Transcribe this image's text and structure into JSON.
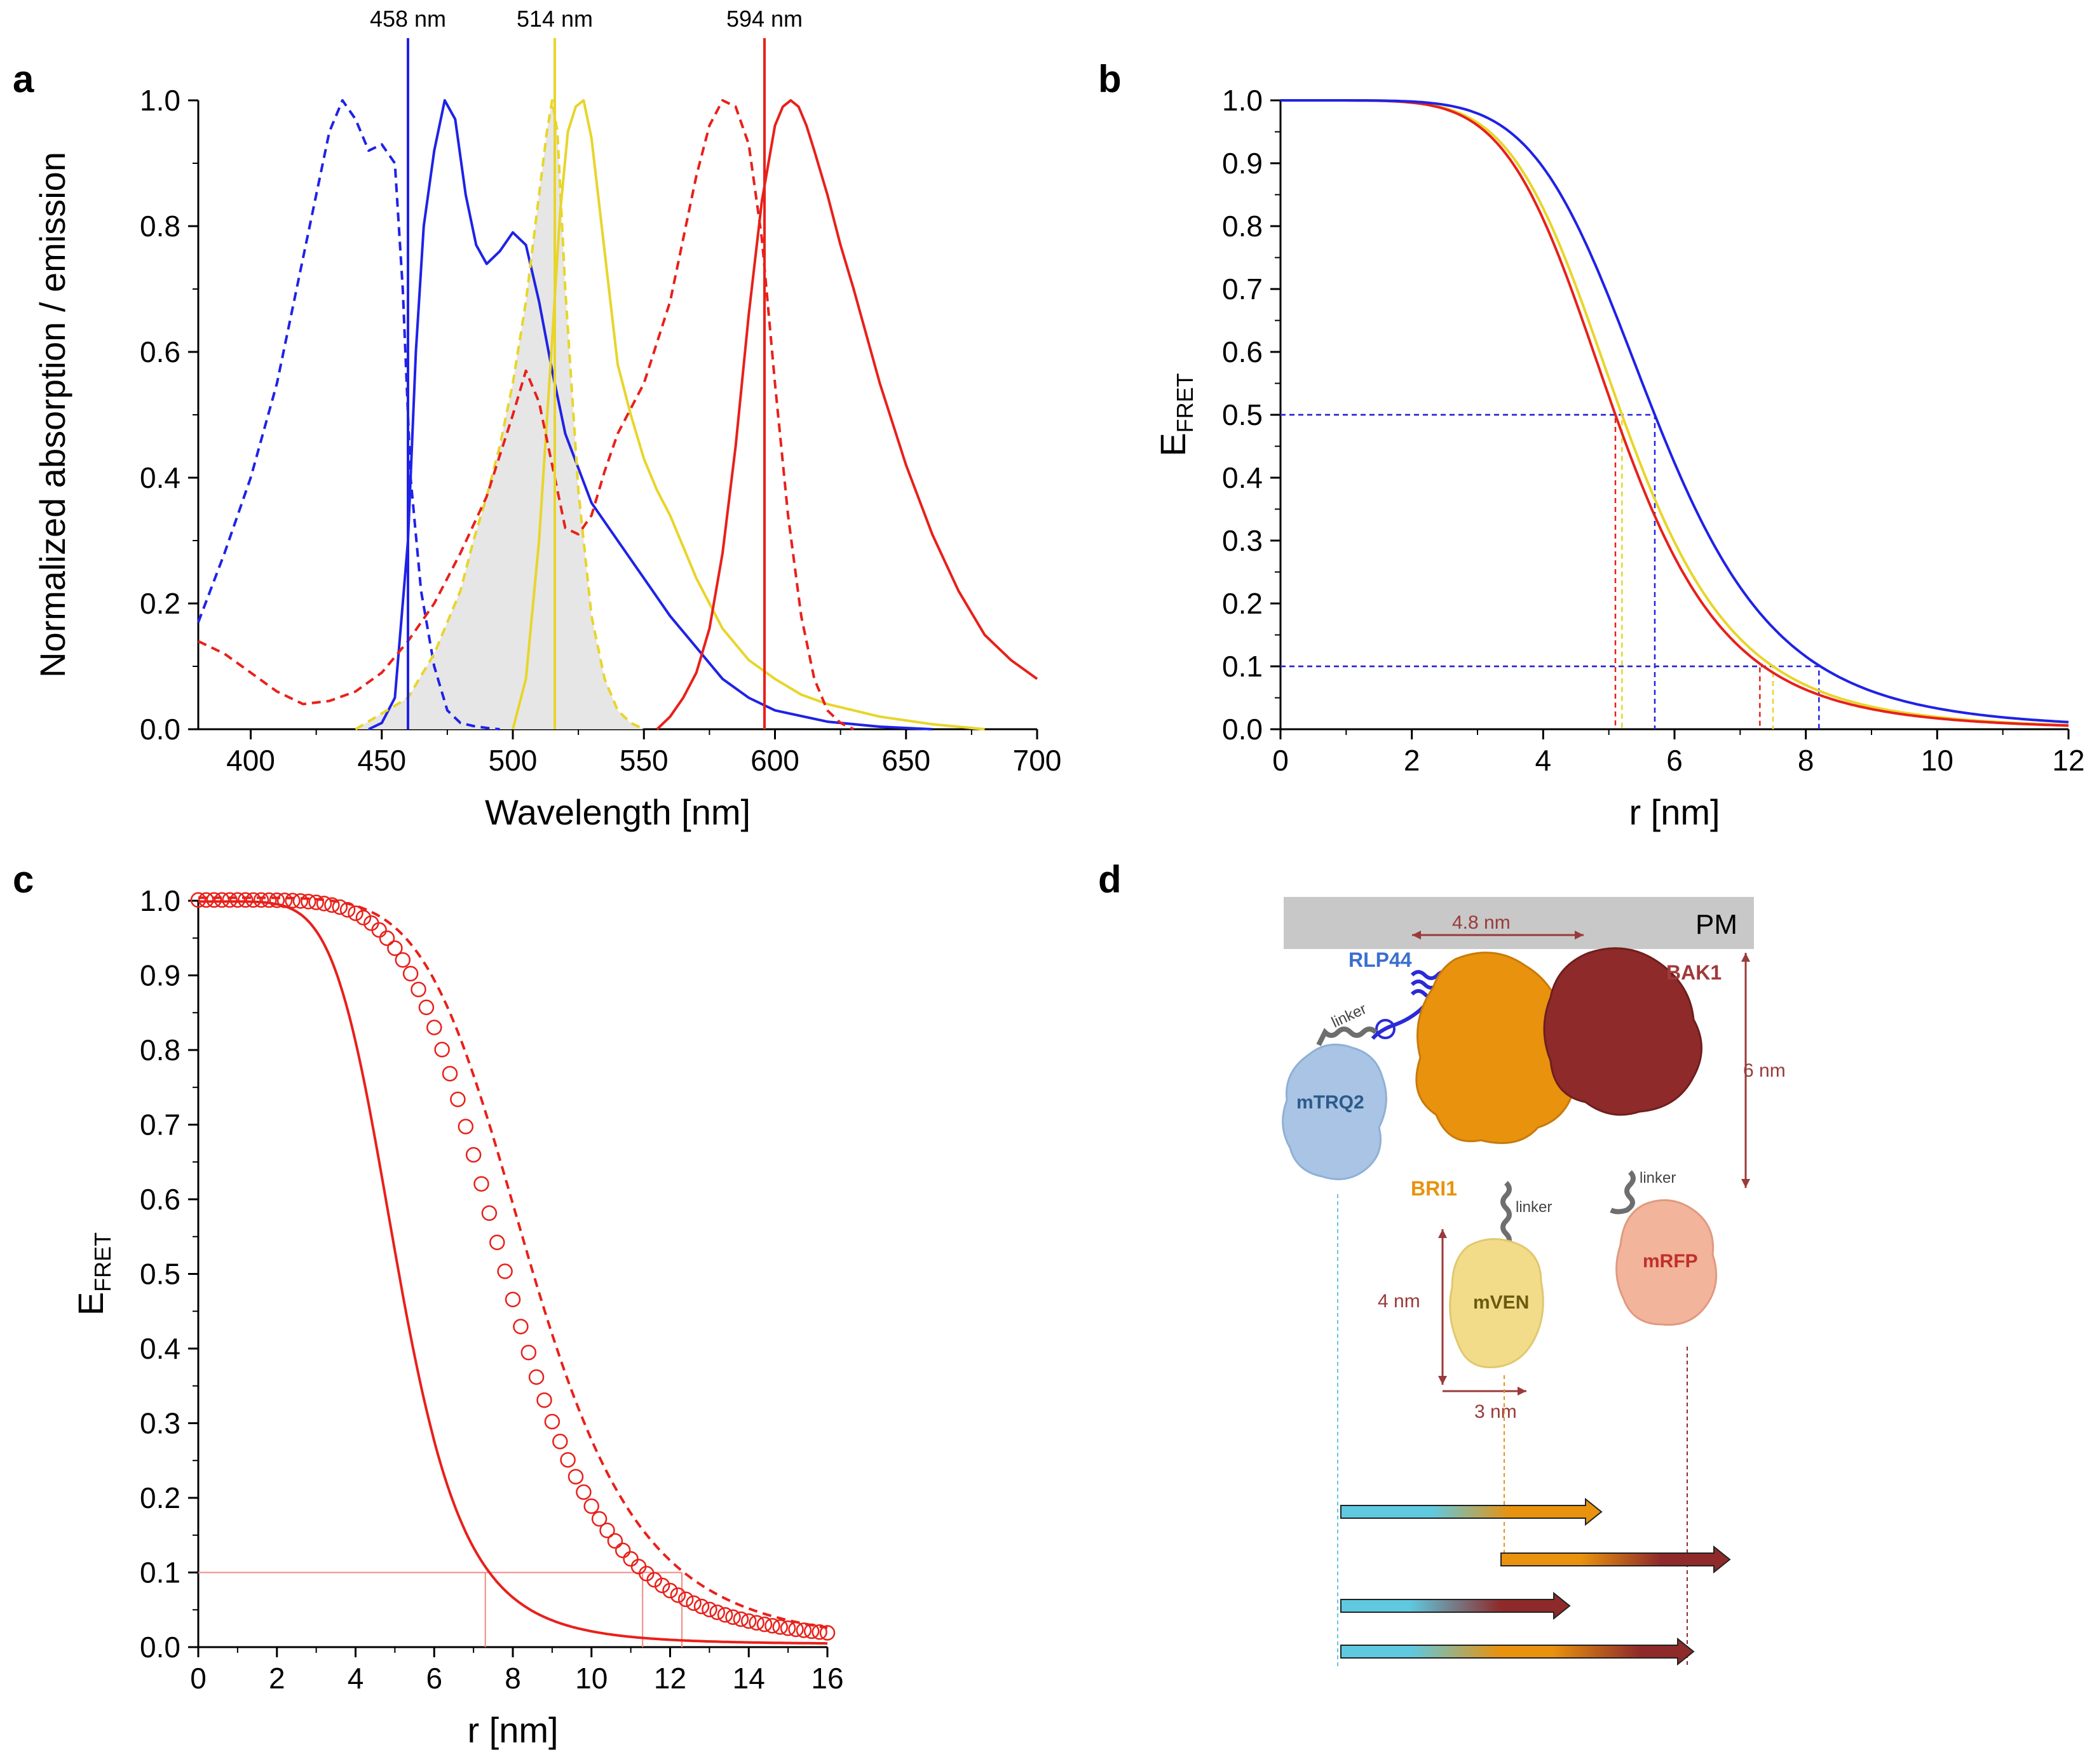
{
  "panels": {
    "a": "a",
    "b": "b",
    "c": "c",
    "d": "d"
  },
  "chart_data": [
    {
      "panel": "a",
      "type": "line",
      "title": "",
      "xlabel": "Wavelength [nm]",
      "ylabel": "Normalized absorption / emission",
      "xlim": [
        380,
        700
      ],
      "ylim": [
        0,
        1.0
      ],
      "xticks": [
        400,
        450,
        500,
        550,
        600,
        650,
        700
      ],
      "yticks": [
        0.0,
        0.2,
        0.4,
        0.6,
        0.8,
        1.0
      ],
      "vlines": [
        {
          "x": 460,
          "label": "458 nm",
          "color": "#1f22e6"
        },
        {
          "x": 516,
          "label": "514 nm",
          "color": "#e8d52a"
        },
        {
          "x": 596,
          "label": "594 nm",
          "color": "#e8201a"
        }
      ],
      "series": [
        {
          "name": "blue absorption",
          "color": "#1f22e6",
          "style": "dashed",
          "x": [
            380,
            390,
            400,
            410,
            420,
            430,
            435,
            440,
            445,
            450,
            455,
            458,
            461,
            465,
            470,
            475,
            480,
            485,
            490,
            495
          ],
          "y": [
            0.17,
            0.28,
            0.4,
            0.55,
            0.75,
            0.95,
            1.0,
            0.97,
            0.92,
            0.93,
            0.9,
            0.7,
            0.4,
            0.22,
            0.1,
            0.03,
            0.01,
            0.005,
            0.002,
            0.0
          ]
        },
        {
          "name": "blue emission",
          "color": "#1f22e6",
          "style": "solid",
          "x": [
            445,
            450,
            455,
            460,
            463,
            466,
            470,
            474,
            478,
            482,
            486,
            490,
            495,
            500,
            505,
            510,
            515,
            520,
            530,
            540,
            550,
            560,
            570,
            580,
            590,
            600,
            620,
            640,
            660
          ],
          "y": [
            0.0,
            0.01,
            0.05,
            0.3,
            0.6,
            0.8,
            0.92,
            1.0,
            0.97,
            0.85,
            0.77,
            0.74,
            0.76,
            0.79,
            0.77,
            0.68,
            0.57,
            0.47,
            0.36,
            0.3,
            0.24,
            0.18,
            0.13,
            0.08,
            0.05,
            0.03,
            0.012,
            0.004,
            0.0
          ]
        },
        {
          "name": "yellow absorption",
          "color": "#e8d52a",
          "style": "dashed",
          "fill": "#e6e6e6",
          "x": [
            440,
            460,
            470,
            480,
            485,
            490,
            495,
            500,
            505,
            510,
            513,
            515,
            517,
            520,
            525,
            530,
            535,
            540,
            545,
            550
          ],
          "y": [
            0.0,
            0.05,
            0.12,
            0.22,
            0.3,
            0.37,
            0.45,
            0.55,
            0.68,
            0.85,
            0.95,
            1.0,
            0.95,
            0.7,
            0.38,
            0.18,
            0.08,
            0.03,
            0.01,
            0.0
          ]
        },
        {
          "name": "yellow emission",
          "color": "#e8d52a",
          "style": "solid",
          "x": [
            500,
            505,
            510,
            515,
            518,
            521,
            524,
            527,
            530,
            535,
            540,
            545,
            550,
            555,
            560,
            570,
            580,
            590,
            600,
            610,
            620,
            640,
            660,
            680
          ],
          "y": [
            0.0,
            0.08,
            0.3,
            0.62,
            0.82,
            0.95,
            0.99,
            1.0,
            0.94,
            0.76,
            0.58,
            0.5,
            0.43,
            0.38,
            0.34,
            0.24,
            0.16,
            0.11,
            0.08,
            0.055,
            0.04,
            0.02,
            0.008,
            0.0
          ]
        },
        {
          "name": "red absorption",
          "color": "#e8201a",
          "style": "dashed",
          "x": [
            380,
            390,
            400,
            410,
            420,
            430,
            440,
            450,
            460,
            470,
            480,
            490,
            500,
            505,
            510,
            515,
            520,
            525,
            530,
            535,
            540,
            550,
            560,
            565,
            570,
            575,
            580,
            585,
            590,
            595,
            600,
            605,
            610,
            615,
            620,
            625,
            630
          ],
          "y": [
            0.14,
            0.12,
            0.09,
            0.06,
            0.04,
            0.045,
            0.06,
            0.09,
            0.14,
            0.2,
            0.28,
            0.37,
            0.5,
            0.57,
            0.52,
            0.42,
            0.32,
            0.31,
            0.34,
            0.41,
            0.47,
            0.55,
            0.68,
            0.78,
            0.88,
            0.96,
            1.0,
            0.99,
            0.93,
            0.78,
            0.55,
            0.34,
            0.18,
            0.08,
            0.03,
            0.01,
            0.0
          ]
        },
        {
          "name": "red emission",
          "color": "#e8201a",
          "style": "solid",
          "x": [
            555,
            560,
            565,
            570,
            575,
            580,
            585,
            590,
            595,
            600,
            603,
            606,
            609,
            612,
            615,
            620,
            625,
            630,
            640,
            650,
            660,
            670,
            680,
            690,
            700
          ],
          "y": [
            0.0,
            0.02,
            0.05,
            0.09,
            0.16,
            0.28,
            0.45,
            0.66,
            0.84,
            0.96,
            0.99,
            1.0,
            0.99,
            0.96,
            0.92,
            0.85,
            0.77,
            0.7,
            0.55,
            0.42,
            0.31,
            0.22,
            0.15,
            0.11,
            0.08
          ]
        }
      ]
    },
    {
      "panel": "b",
      "type": "line",
      "title": "",
      "xlabel": "r [nm]",
      "ylabel": "E",
      "ylabel_sub": "FRET",
      "xlim": [
        0,
        12
      ],
      "ylim": [
        0,
        1.0
      ],
      "xticks": [
        0,
        2,
        4,
        6,
        8,
        10,
        12
      ],
      "yticks": [
        0.0,
        0.1,
        0.2,
        0.3,
        0.4,
        0.5,
        0.6,
        0.7,
        0.8,
        0.9,
        1.0
      ],
      "series": [
        {
          "name": "mTRQ2-mVEN",
          "color": "#e8d52a",
          "style": "solid",
          "R0": 5.2
        },
        {
          "name": "mVEN-mRFP",
          "color": "#e8201a",
          "style": "solid",
          "R0": 5.1
        },
        {
          "name": "mTRQ2-mRFP",
          "color": "#1f22e6",
          "style": "solid",
          "R0": 5.7
        }
      ],
      "guides": [
        {
          "y": 0.5,
          "x": 5.1,
          "color": "#e8201a"
        },
        {
          "y": 0.5,
          "x": 5.2,
          "color": "#e8d52a"
        },
        {
          "y": 0.5,
          "x": 5.7,
          "color": "#1f22e6"
        },
        {
          "y": 0.1,
          "x": 7.3,
          "color": "#e8201a"
        },
        {
          "y": 0.1,
          "x": 7.5,
          "color": "#e8d52a"
        },
        {
          "y": 0.1,
          "x": 8.2,
          "color": "#1f22e6"
        }
      ]
    },
    {
      "panel": "c",
      "type": "line",
      "title": "",
      "xlabel": "r [nm]",
      "ylabel": "E",
      "ylabel_sub": "FRET",
      "xlim": [
        0,
        16
      ],
      "ylim": [
        0,
        1.0
      ],
      "xticks": [
        0,
        2,
        4,
        6,
        8,
        10,
        12,
        14,
        16
      ],
      "yticks": [
        0.0,
        0.1,
        0.2,
        0.3,
        0.4,
        0.5,
        0.6,
        0.7,
        0.8,
        0.9,
        1.0
      ],
      "series": [
        {
          "name": "solid",
          "color": "#e8201a",
          "style": "solid",
          "R0": 5.1,
          "scale": 0.995
        },
        {
          "name": "circles",
          "color": "#e8201a",
          "style": "markers",
          "R0": 7.8,
          "scale": 0.995,
          "x_step": 0.2
        },
        {
          "name": "dashed",
          "color": "#e8201a",
          "style": "dashed",
          "R0": 8.5,
          "scale": 1.0
        }
      ],
      "guides": [
        {
          "y": 0.1,
          "x": 7.3
        },
        {
          "y": 0.1,
          "x": 11.3
        },
        {
          "y": 0.1,
          "x": 12.3
        }
      ]
    }
  ],
  "diagram_d": {
    "membrane_label": "PM",
    "distance_top": "4.8 nm",
    "distance_height": "6 nm",
    "distance_fp_height": "4 nm",
    "distance_fp_width": "3 nm",
    "proteins": {
      "rlp44": "RLP44",
      "bak1": "BAK1",
      "bri1": "BRI1",
      "mtrq2": "mTRQ2",
      "mven": "mVEN",
      "mrfp": "mRFP"
    },
    "linker_label": "linker",
    "colors": {
      "membrane": "#c8c8c8",
      "bri1": "#e8920e",
      "bak1": "#8e2a2a",
      "mtrq2": "#a9c4e4",
      "mven": "#f2dc8a",
      "mrfp": "#f2b49a",
      "rlp44": "#2a2ad8",
      "dimension": "#9a3a3a",
      "cyan": "#5fc9e0"
    }
  }
}
